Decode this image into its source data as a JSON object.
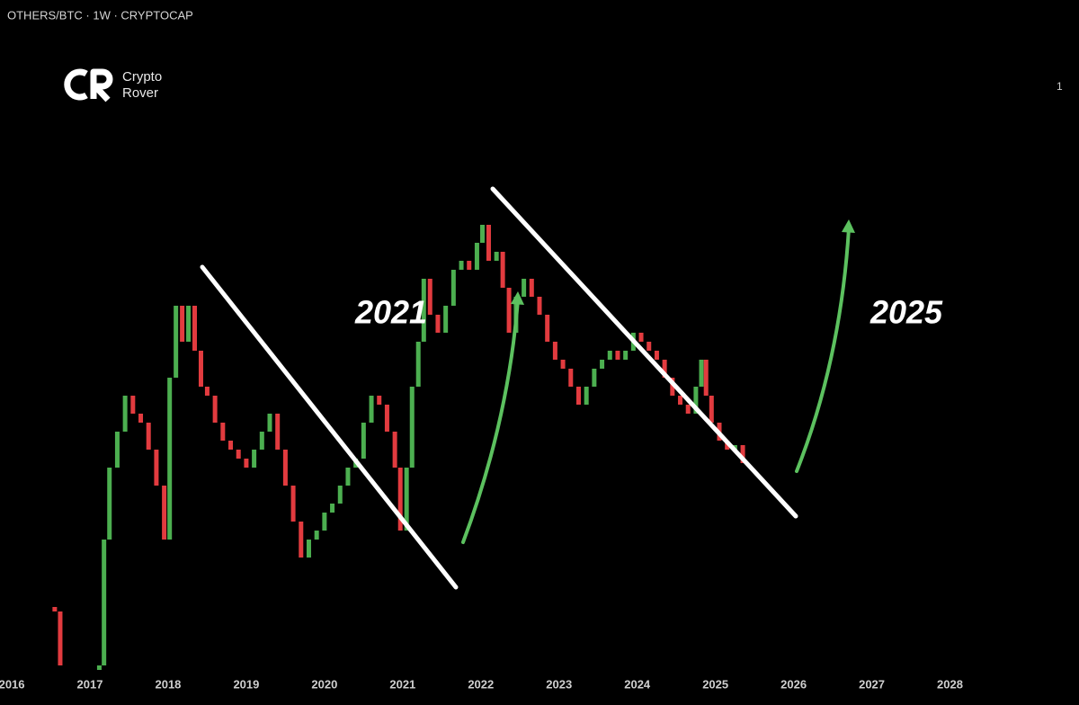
{
  "chart_data": {
    "type": "candlestick",
    "title": "OTHERS/BTC · 1W · CRYPTOCAP",
    "watermark": [
      "Crypto",
      "Rover"
    ],
    "corner_label": "1",
    "annotations": [
      "2021",
      "2025"
    ],
    "up_color": "#4caf50",
    "down_color": "#e23b3f",
    "grid": false,
    "xlim": [
      2015.85,
      2029.65
    ],
    "xticks": [
      2016,
      2017,
      2018,
      2019,
      2020,
      2021,
      2022,
      2023,
      2024,
      2025,
      2026,
      2027,
      2028
    ],
    "ylim": [
      0,
      745
    ],
    "x": [
      2016.55,
      2016.62,
      2017.12,
      2017.18,
      2017.25,
      2017.35,
      2017.45,
      2017.55,
      2017.65,
      2017.75,
      2017.85,
      2017.95,
      2018.02,
      2018.1,
      2018.18,
      2018.26,
      2018.34,
      2018.42,
      2018.5,
      2018.6,
      2018.7,
      2018.8,
      2018.9,
      2019.0,
      2019.1,
      2019.2,
      2019.3,
      2019.4,
      2019.5,
      2019.6,
      2019.7,
      2019.8,
      2019.9,
      2020.0,
      2020.1,
      2020.2,
      2020.3,
      2020.4,
      2020.5,
      2020.6,
      2020.7,
      2020.8,
      2020.9,
      2020.97,
      2021.05,
      2021.12,
      2021.2,
      2021.27,
      2021.35,
      2021.45,
      2021.55,
      2021.65,
      2021.75,
      2021.85,
      2021.95,
      2022.02,
      2022.1,
      2022.2,
      2022.28,
      2022.36,
      2022.45,
      2022.55,
      2022.65,
      2022.75,
      2022.85,
      2022.95,
      2023.05,
      2023.15,
      2023.25,
      2023.35,
      2023.45,
      2023.55,
      2023.65,
      2023.75,
      2023.85,
      2023.95,
      2024.05,
      2024.15,
      2024.25,
      2024.35,
      2024.45,
      2024.55,
      2024.65,
      2024.75,
      2024.82,
      2024.88,
      2024.95,
      2025.05,
      2025.15,
      2025.25,
      2025.35
    ],
    "open": [
      70,
      65,
      0,
      5,
      145,
      225,
      265,
      305,
      285,
      275,
      245,
      205,
      145,
      325,
      405,
      365,
      405,
      355,
      315,
      305,
      275,
      255,
      245,
      235,
      225,
      245,
      265,
      285,
      245,
      205,
      165,
      125,
      145,
      155,
      175,
      185,
      205,
      225,
      235,
      275,
      305,
      295,
      265,
      225,
      155,
      225,
      315,
      365,
      435,
      395,
      375,
      405,
      445,
      455,
      445,
      475,
      495,
      455,
      465,
      425,
      375,
      415,
      435,
      415,
      395,
      365,
      345,
      335,
      315,
      295,
      315,
      335,
      345,
      355,
      345,
      355,
      375,
      365,
      355,
      345,
      325,
      305,
      295,
      285,
      315,
      345,
      305,
      275,
      255,
      245,
      250
    ],
    "close": [
      65,
      5,
      5,
      145,
      225,
      265,
      305,
      285,
      275,
      245,
      205,
      145,
      325,
      405,
      365,
      405,
      355,
      315,
      305,
      275,
      255,
      245,
      235,
      225,
      245,
      265,
      285,
      245,
      205,
      165,
      125,
      145,
      155,
      175,
      185,
      205,
      225,
      235,
      275,
      305,
      295,
      265,
      225,
      155,
      225,
      315,
      365,
      435,
      395,
      375,
      405,
      445,
      455,
      445,
      475,
      495,
      455,
      465,
      425,
      375,
      415,
      435,
      415,
      395,
      365,
      345,
      335,
      315,
      295,
      315,
      335,
      345,
      355,
      345,
      355,
      375,
      365,
      355,
      345,
      325,
      305,
      295,
      285,
      315,
      345,
      305,
      275,
      255,
      245,
      250,
      230
    ]
  }
}
